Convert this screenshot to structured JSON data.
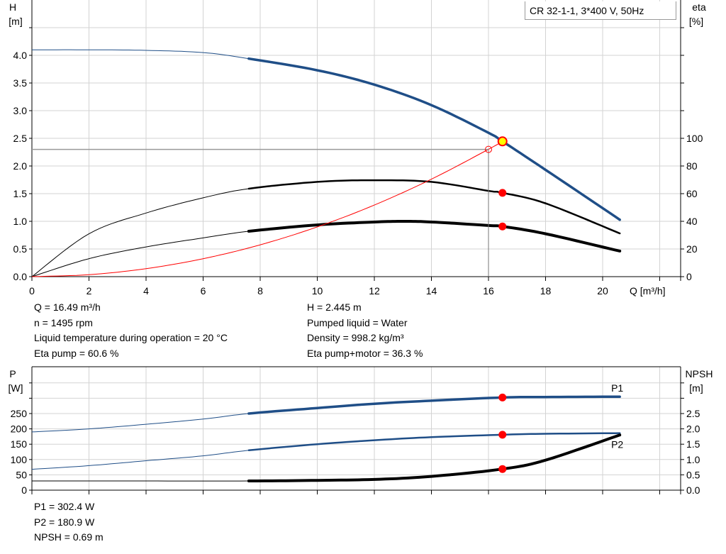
{
  "title": "CR 32-1-1, 3*400 V, 50Hz",
  "info_top": {
    "left": [
      "Q = 16.49 m³/h",
      "n = 1495 rpm",
      "Liquid temperature during operation = 20 °C",
      "Eta pump = 60.6 %"
    ],
    "right": [
      "H = 2.445 m",
      "Pumped liquid = Water",
      "Density = 998.2 kg/m³",
      "Eta pump+motor = 36.3 %"
    ]
  },
  "info_bottom": [
    "P1 = 302.4 W",
    "P2 = 180.9 W",
    "NPSH = 0.69 m"
  ],
  "colors": {
    "head": "#1f4e87",
    "power": "#1f4e87",
    "eta": "#000000",
    "system": "#ff0000",
    "duty_point": "#ff0000",
    "duty_highlight": "#ffff00",
    "grid": "#d3d3d3"
  },
  "chart_data": [
    {
      "type": "line",
      "xlabel": "Q [m³/h]",
      "ylabel": "H\n[m]",
      "y2label": "eta\n[%]",
      "xlim": [
        0,
        22.7
      ],
      "ylim": [
        0,
        4.5
      ],
      "y2lim": [
        0,
        100
      ],
      "xticks": [
        "0",
        "2",
        "4",
        "6",
        "8",
        "10",
        "12",
        "14",
        "16",
        "18",
        "20"
      ],
      "yticks": [
        "0.0",
        "0.5",
        "1.0",
        "1.5",
        "2.0",
        "2.5",
        "3.0",
        "3.5",
        "4.0"
      ],
      "y2ticks": [
        "0",
        "20",
        "40",
        "60",
        "80",
        "100"
      ],
      "grid": true,
      "series": [
        {
          "key": "H",
          "axis": "left",
          "x": [
            0,
            2,
            4,
            6,
            7.6,
            10,
            12,
            14,
            16,
            16.49,
            18,
            20.6
          ],
          "y": [
            4.1,
            4.1,
            4.09,
            4.05,
            3.94,
            3.73,
            3.47,
            3.1,
            2.6,
            2.445,
            1.93,
            1.03
          ],
          "thick_from": 7.6
        },
        {
          "key": "eta_pump",
          "axis": "right",
          "x": [
            0,
            2,
            4,
            6,
            7.6,
            10,
            12,
            14,
            16,
            16.49,
            18,
            20.6
          ],
          "y": [
            0,
            31,
            46,
            57,
            63.6,
            68.5,
            69.7,
            68.5,
            62,
            60.6,
            53,
            31.3
          ],
          "thick_from": 7.6
        },
        {
          "key": "eta_pump_motor",
          "axis": "right",
          "x": [
            0,
            2,
            4,
            6,
            7.6,
            10,
            12,
            13,
            14,
            16,
            16.49,
            18,
            20.6
          ],
          "y": [
            0,
            13,
            21.5,
            28,
            32.8,
            37.4,
            39.5,
            40,
            39.5,
            37,
            36.3,
            31,
            18.5
          ],
          "thick_from": 7.6
        },
        {
          "key": "system_curve",
          "axis": "left",
          "x": [
            0,
            2,
            4,
            6,
            8,
            10,
            12,
            14,
            16,
            16.49
          ],
          "y": [
            0,
            0.036,
            0.144,
            0.324,
            0.575,
            0.899,
            1.294,
            1.762,
            2.301,
            2.445
          ]
        }
      ],
      "duty_point": {
        "Q": 16.49,
        "H": 2.445,
        "eta_pump": 60.6,
        "eta_pump_motor": 36.3
      },
      "reference_point": {
        "Q": 16,
        "H": 2.3
      }
    },
    {
      "type": "line",
      "ylabel": "P\n[W]",
      "y2label": "NPSH\n[m]",
      "xlim": [
        0,
        22.7
      ],
      "ylim": [
        0,
        400
      ],
      "y2lim": [
        0,
        4
      ],
      "yticks": [
        "0",
        "50",
        "100",
        "150",
        "200",
        "250"
      ],
      "y2ticks": [
        "0.0",
        "0.5",
        "1.0",
        "1.5",
        "2.0",
        "2.5"
      ],
      "grid": true,
      "series": [
        {
          "key": "P1",
          "name": "P1",
          "axis": "left",
          "x": [
            0,
            2,
            4,
            6,
            7.6,
            10,
            12,
            14,
            16.49,
            18,
            20.6
          ],
          "y": [
            190,
            200,
            215,
            232,
            250,
            268,
            282,
            292,
            302.4,
            304,
            305
          ],
          "thick_from": 7.6
        },
        {
          "key": "P2",
          "name": "P2",
          "axis": "left",
          "x": [
            0,
            2,
            4,
            6,
            7.6,
            10,
            12,
            14,
            16.49,
            18,
            20.6
          ],
          "y": [
            68,
            80,
            96,
            112,
            130,
            150,
            163,
            173,
            180.9,
            184,
            186
          ],
          "thick_from": 7.6
        },
        {
          "key": "NPSH",
          "axis": "right",
          "x": [
            0,
            4,
            7.6,
            10,
            12,
            14,
            16.49,
            18,
            20.6
          ],
          "y": [
            0.3,
            0.3,
            0.3,
            0.32,
            0.35,
            0.45,
            0.69,
            0.98,
            1.8
          ],
          "thick_from": 7.6
        }
      ],
      "duty_point": {
        "Q": 16.49,
        "P1": 302.4,
        "P2": 180.9,
        "NPSH": 0.69
      }
    }
  ]
}
